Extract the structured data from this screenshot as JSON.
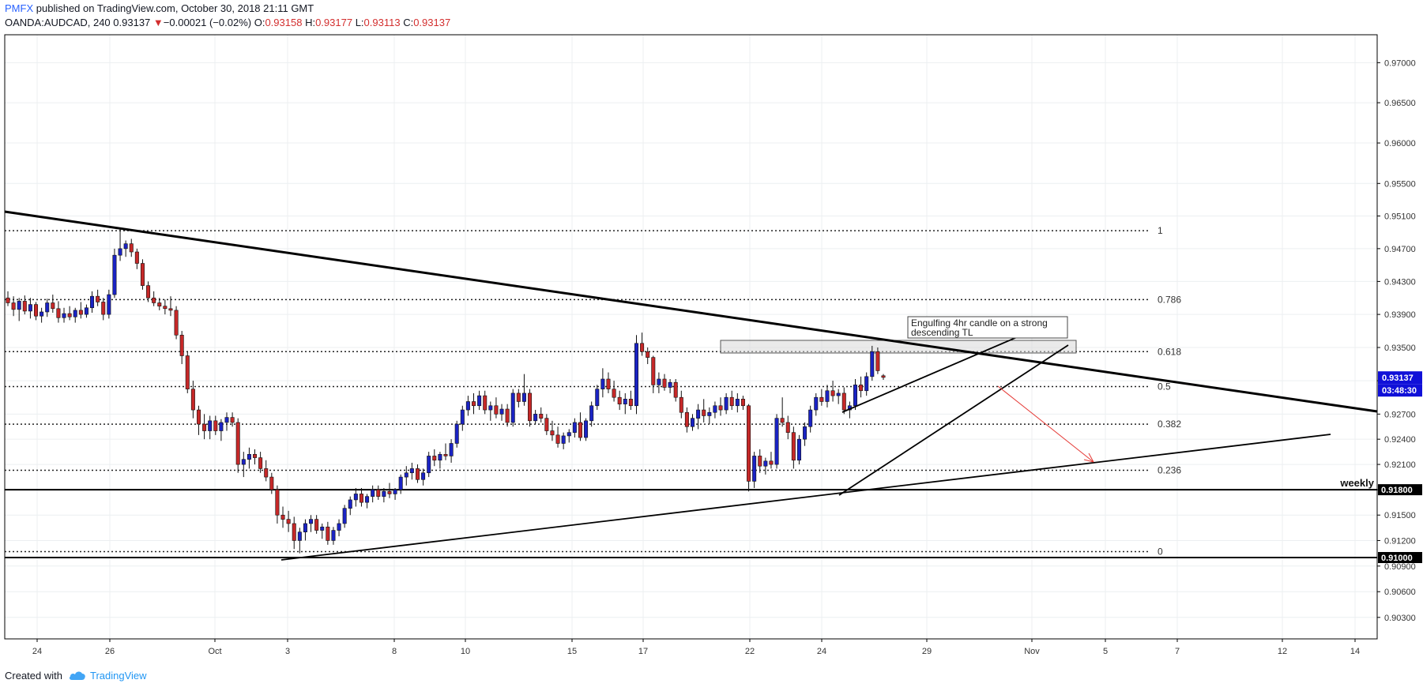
{
  "header": {
    "publisher": "PMFX",
    "published_text": "published on TradingView.com, October 30, 2018 21:11 GMT"
  },
  "symbol": {
    "name": "OANDA:AUDCAD, 240",
    "last": "0.93137",
    "change_arrow": "▼",
    "change": "−0.00021 (−0.02%)",
    "open_label": "O:",
    "open": "0.93158",
    "high_label": "H:",
    "high": "0.93177",
    "low_label": "L:",
    "low": "0.93113",
    "close_label": "C:",
    "close": "0.93137"
  },
  "footer": {
    "created_with": "Created with",
    "brand": "TradingView",
    "icon": "tradingview-cloud-icon"
  },
  "colors": {
    "bull": "#1a23c4",
    "bear": "#c62828",
    "price_badge": "#1010d8",
    "arrow": "#e53935"
  },
  "chart_data": {
    "type": "candlestick",
    "symbol": "OANDA:AUDCAD",
    "timeframe": "240",
    "y_axis": {
      "ticks": [
        "0.97000",
        "0.96500",
        "0.96000",
        "0.95500",
        "0.95100",
        "0.94700",
        "0.94300",
        "0.93900",
        "0.93500",
        "0.93100",
        "0.92700",
        "0.92400",
        "0.92100",
        "0.91800",
        "0.91500",
        "0.91200",
        "0.90900",
        "0.90600",
        "0.90300"
      ],
      "scale": "log",
      "ylim": [
        0.9005,
        0.9735
      ]
    },
    "x_axis": {
      "ticks": [
        "24",
        "26",
        "Oct",
        "3",
        "8",
        "10",
        "15",
        "17",
        "22",
        "24",
        "29",
        "Nov",
        "5",
        "7",
        "12",
        "14"
      ]
    },
    "grid": true,
    "fibonacci": [
      {
        "level": "1",
        "price": 0.9492
      },
      {
        "level": "0.786",
        "price": 0.9408
      },
      {
        "level": "0.618",
        "price": 0.9345
      },
      {
        "level": "0.5",
        "price": 0.9303
      },
      {
        "level": "0.382",
        "price": 0.9258
      },
      {
        "level": "0.236",
        "price": 0.9203
      },
      {
        "level": "0",
        "price": 0.9107
      }
    ],
    "horizontal_levels": [
      {
        "label": "weekly",
        "price": 0.918,
        "badge": "0.91800"
      },
      {
        "label": "",
        "price": 0.91,
        "badge": "0.91000"
      }
    ],
    "current_price": {
      "value": "0.93137",
      "countdown": "03:48:30"
    },
    "annotation": "Engulfing 4hr candle on a strong descending TL",
    "candles": [
      [
        0.941,
        0.9418,
        0.94,
        0.9404
      ],
      [
        0.9404,
        0.9412,
        0.9388,
        0.9396
      ],
      [
        0.9396,
        0.941,
        0.9382,
        0.9406
      ],
      [
        0.9406,
        0.9413,
        0.939,
        0.9394
      ],
      [
        0.9394,
        0.941,
        0.9385,
        0.9402
      ],
      [
        0.9402,
        0.9405,
        0.9383,
        0.9388
      ],
      [
        0.9388,
        0.9398,
        0.938,
        0.9393
      ],
      [
        0.9393,
        0.9409,
        0.9387,
        0.9404
      ],
      [
        0.9404,
        0.9414,
        0.9392,
        0.9397
      ],
      [
        0.9397,
        0.9406,
        0.938,
        0.9386
      ],
      [
        0.9386,
        0.9398,
        0.938,
        0.9391
      ],
      [
        0.9391,
        0.94,
        0.9383,
        0.9387
      ],
      [
        0.9387,
        0.9398,
        0.938,
        0.9395
      ],
      [
        0.9395,
        0.9405,
        0.9385,
        0.939
      ],
      [
        0.939,
        0.9402,
        0.9386,
        0.9398
      ],
      [
        0.9398,
        0.9418,
        0.9392,
        0.9412
      ],
      [
        0.9412,
        0.942,
        0.94,
        0.9405
      ],
      [
        0.9405,
        0.941,
        0.9383,
        0.939
      ],
      [
        0.939,
        0.942,
        0.9385,
        0.9414
      ],
      [
        0.9414,
        0.947,
        0.941,
        0.9462
      ],
      [
        0.9462,
        0.9495,
        0.9455,
        0.947
      ],
      [
        0.947,
        0.948,
        0.946,
        0.9476
      ],
      [
        0.9476,
        0.9482,
        0.946,
        0.9466
      ],
      [
        0.9466,
        0.947,
        0.9445,
        0.9452
      ],
      [
        0.9452,
        0.9457,
        0.942,
        0.9425
      ],
      [
        0.9425,
        0.943,
        0.9405,
        0.941
      ],
      [
        0.941,
        0.9418,
        0.94,
        0.9404
      ],
      [
        0.9404,
        0.941,
        0.9395,
        0.94
      ],
      [
        0.94,
        0.9408,
        0.939,
        0.9397
      ],
      [
        0.9397,
        0.9412,
        0.9388,
        0.9395
      ],
      [
        0.9395,
        0.94,
        0.936,
        0.9365
      ],
      [
        0.9365,
        0.937,
        0.933,
        0.934
      ],
      [
        0.934,
        0.9345,
        0.9295,
        0.93
      ],
      [
        0.93,
        0.931,
        0.9265,
        0.9275
      ],
      [
        0.9275,
        0.928,
        0.9245,
        0.9258
      ],
      [
        0.9258,
        0.927,
        0.924,
        0.925
      ],
      [
        0.925,
        0.9268,
        0.924,
        0.9262
      ],
      [
        0.9262,
        0.9268,
        0.9245,
        0.925
      ],
      [
        0.925,
        0.9264,
        0.9238,
        0.926
      ],
      [
        0.926,
        0.9272,
        0.925,
        0.9266
      ],
      [
        0.9266,
        0.9272,
        0.9255,
        0.926
      ],
      [
        0.926,
        0.9265,
        0.92,
        0.921
      ],
      [
        0.921,
        0.9225,
        0.9195,
        0.9216
      ],
      [
        0.9216,
        0.923,
        0.9205,
        0.9222
      ],
      [
        0.9222,
        0.9228,
        0.921,
        0.9218
      ],
      [
        0.9218,
        0.9225,
        0.92,
        0.9205
      ],
      [
        0.9205,
        0.9215,
        0.919,
        0.9195
      ],
      [
        0.9195,
        0.92,
        0.9175,
        0.918
      ],
      [
        0.918,
        0.9185,
        0.914,
        0.915
      ],
      [
        0.915,
        0.916,
        0.9135,
        0.9145
      ],
      [
        0.9145,
        0.9155,
        0.913,
        0.914
      ],
      [
        0.914,
        0.9148,
        0.911,
        0.912
      ],
      [
        0.912,
        0.9135,
        0.9105,
        0.913
      ],
      [
        0.913,
        0.9145,
        0.912,
        0.914
      ],
      [
        0.914,
        0.915,
        0.913,
        0.9145
      ],
      [
        0.9145,
        0.915,
        0.9128,
        0.9132
      ],
      [
        0.9132,
        0.914,
        0.9122,
        0.9136
      ],
      [
        0.9136,
        0.9142,
        0.9115,
        0.912
      ],
      [
        0.912,
        0.9136,
        0.9115,
        0.9132
      ],
      [
        0.9132,
        0.9145,
        0.9125,
        0.914
      ],
      [
        0.914,
        0.9162,
        0.9135,
        0.9158
      ],
      [
        0.9158,
        0.9172,
        0.915,
        0.9168
      ],
      [
        0.9168,
        0.9182,
        0.916,
        0.9175
      ],
      [
        0.9175,
        0.9182,
        0.916,
        0.9165
      ],
      [
        0.9165,
        0.9175,
        0.9158,
        0.9172
      ],
      [
        0.9172,
        0.9185,
        0.9165,
        0.918
      ],
      [
        0.918,
        0.9185,
        0.9168,
        0.9172
      ],
      [
        0.9172,
        0.9182,
        0.9165,
        0.9178
      ],
      [
        0.9178,
        0.9188,
        0.917,
        0.9175
      ],
      [
        0.9175,
        0.9182,
        0.9168,
        0.918
      ],
      [
        0.918,
        0.9198,
        0.9175,
        0.9195
      ],
      [
        0.9195,
        0.9208,
        0.9185,
        0.92
      ],
      [
        0.92,
        0.9212,
        0.9192,
        0.9205
      ],
      [
        0.9205,
        0.921,
        0.9188,
        0.9192
      ],
      [
        0.9192,
        0.9205,
        0.9185,
        0.92
      ],
      [
        0.92,
        0.9225,
        0.9195,
        0.922
      ],
      [
        0.922,
        0.9228,
        0.9208,
        0.9215
      ],
      [
        0.9215,
        0.9225,
        0.9205,
        0.9222
      ],
      [
        0.9222,
        0.9235,
        0.9215,
        0.922
      ],
      [
        0.922,
        0.924,
        0.9212,
        0.9235
      ],
      [
        0.9235,
        0.9262,
        0.923,
        0.9258
      ],
      [
        0.9258,
        0.928,
        0.925,
        0.9275
      ],
      [
        0.9275,
        0.9292,
        0.9268,
        0.9285
      ],
      [
        0.9285,
        0.9295,
        0.927,
        0.928
      ],
      [
        0.928,
        0.9298,
        0.9275,
        0.9292
      ],
      [
        0.9292,
        0.9298,
        0.927,
        0.9275
      ],
      [
        0.9275,
        0.9285,
        0.9262,
        0.928
      ],
      [
        0.928,
        0.929,
        0.9265,
        0.927
      ],
      [
        0.927,
        0.9282,
        0.9262,
        0.9276
      ],
      [
        0.9276,
        0.9282,
        0.9255,
        0.926
      ],
      [
        0.926,
        0.93,
        0.9255,
        0.9295
      ],
      [
        0.9295,
        0.93,
        0.9278,
        0.9285
      ],
      [
        0.9285,
        0.9318,
        0.928,
        0.9295
      ],
      [
        0.9295,
        0.93,
        0.9255,
        0.9262
      ],
      [
        0.9262,
        0.9275,
        0.9258,
        0.927
      ],
      [
        0.927,
        0.9278,
        0.926,
        0.9265
      ],
      [
        0.9265,
        0.927,
        0.9245,
        0.925
      ],
      [
        0.925,
        0.9262,
        0.9238,
        0.9245
      ],
      [
        0.9245,
        0.9255,
        0.923,
        0.9235
      ],
      [
        0.9235,
        0.9248,
        0.9228,
        0.9244
      ],
      [
        0.9244,
        0.9252,
        0.9236,
        0.9248
      ],
      [
        0.9248,
        0.9265,
        0.9242,
        0.926
      ],
      [
        0.926,
        0.9272,
        0.9238,
        0.9242
      ],
      [
        0.9242,
        0.9265,
        0.9238,
        0.9262
      ],
      [
        0.9262,
        0.9285,
        0.9255,
        0.928
      ],
      [
        0.928,
        0.9305,
        0.9275,
        0.93
      ],
      [
        0.93,
        0.9325,
        0.929,
        0.9312
      ],
      [
        0.9312,
        0.932,
        0.9295,
        0.93
      ],
      [
        0.93,
        0.931,
        0.9285,
        0.929
      ],
      [
        0.929,
        0.9298,
        0.9275,
        0.9282
      ],
      [
        0.9282,
        0.9295,
        0.927,
        0.9288
      ],
      [
        0.9288,
        0.9298,
        0.9275,
        0.928
      ],
      [
        0.928,
        0.9365,
        0.927,
        0.9355
      ],
      [
        0.9355,
        0.9368,
        0.934,
        0.9345
      ],
      [
        0.9345,
        0.935,
        0.933,
        0.9338
      ],
      [
        0.9338,
        0.934,
        0.9295,
        0.9305
      ],
      [
        0.9305,
        0.932,
        0.9295,
        0.9312
      ],
      [
        0.9312,
        0.9318,
        0.9298,
        0.9302
      ],
      [
        0.9302,
        0.9312,
        0.9295,
        0.9308
      ],
      [
        0.9308,
        0.9312,
        0.9285,
        0.929
      ],
      [
        0.929,
        0.9298,
        0.9265,
        0.9272
      ],
      [
        0.9272,
        0.9278,
        0.9248,
        0.9255
      ],
      [
        0.9255,
        0.927,
        0.925,
        0.9265
      ],
      [
        0.9265,
        0.9282,
        0.9252,
        0.9275
      ],
      [
        0.9275,
        0.9288,
        0.926,
        0.9268
      ],
      [
        0.9268,
        0.9278,
        0.9258,
        0.9272
      ],
      [
        0.9272,
        0.9285,
        0.9265,
        0.928
      ],
      [
        0.928,
        0.929,
        0.9268,
        0.9275
      ],
      [
        0.9275,
        0.9295,
        0.927,
        0.929
      ],
      [
        0.929,
        0.9298,
        0.9275,
        0.928
      ],
      [
        0.928,
        0.9295,
        0.9272,
        0.9288
      ],
      [
        0.9288,
        0.9292,
        0.9275,
        0.928
      ],
      [
        0.928,
        0.9282,
        0.9178,
        0.919
      ],
      [
        0.919,
        0.9225,
        0.9182,
        0.922
      ],
      [
        0.922,
        0.9228,
        0.92,
        0.9208
      ],
      [
        0.9208,
        0.9218,
        0.9198,
        0.9214
      ],
      [
        0.9214,
        0.9225,
        0.9205,
        0.921
      ],
      [
        0.921,
        0.927,
        0.9205,
        0.9265
      ],
      [
        0.9265,
        0.929,
        0.9255,
        0.926
      ],
      [
        0.926,
        0.9268,
        0.924,
        0.9248
      ],
      [
        0.9248,
        0.9255,
        0.9205,
        0.9215
      ],
      [
        0.9215,
        0.9245,
        0.921,
        0.924
      ],
      [
        0.924,
        0.926,
        0.9232,
        0.9255
      ],
      [
        0.9255,
        0.928,
        0.9248,
        0.9275
      ],
      [
        0.9275,
        0.9295,
        0.9268,
        0.929
      ],
      [
        0.929,
        0.93,
        0.928,
        0.9285
      ],
      [
        0.9285,
        0.9305,
        0.9278,
        0.9298
      ],
      [
        0.9298,
        0.931,
        0.9285,
        0.9292
      ],
      [
        0.9292,
        0.93,
        0.9282,
        0.9295
      ],
      [
        0.9295,
        0.9302,
        0.927,
        0.9275
      ],
      [
        0.9275,
        0.9285,
        0.9265,
        0.928
      ],
      [
        0.928,
        0.9312,
        0.9275,
        0.9305
      ],
      [
        0.9305,
        0.9315,
        0.929,
        0.9298
      ],
      [
        0.9298,
        0.932,
        0.9292,
        0.9315
      ],
      [
        0.9315,
        0.9352,
        0.931,
        0.9345
      ],
      [
        0.9345,
        0.935,
        0.9318,
        0.9322
      ],
      [
        0.9316,
        0.9318,
        0.9311,
        0.9314
      ]
    ]
  }
}
